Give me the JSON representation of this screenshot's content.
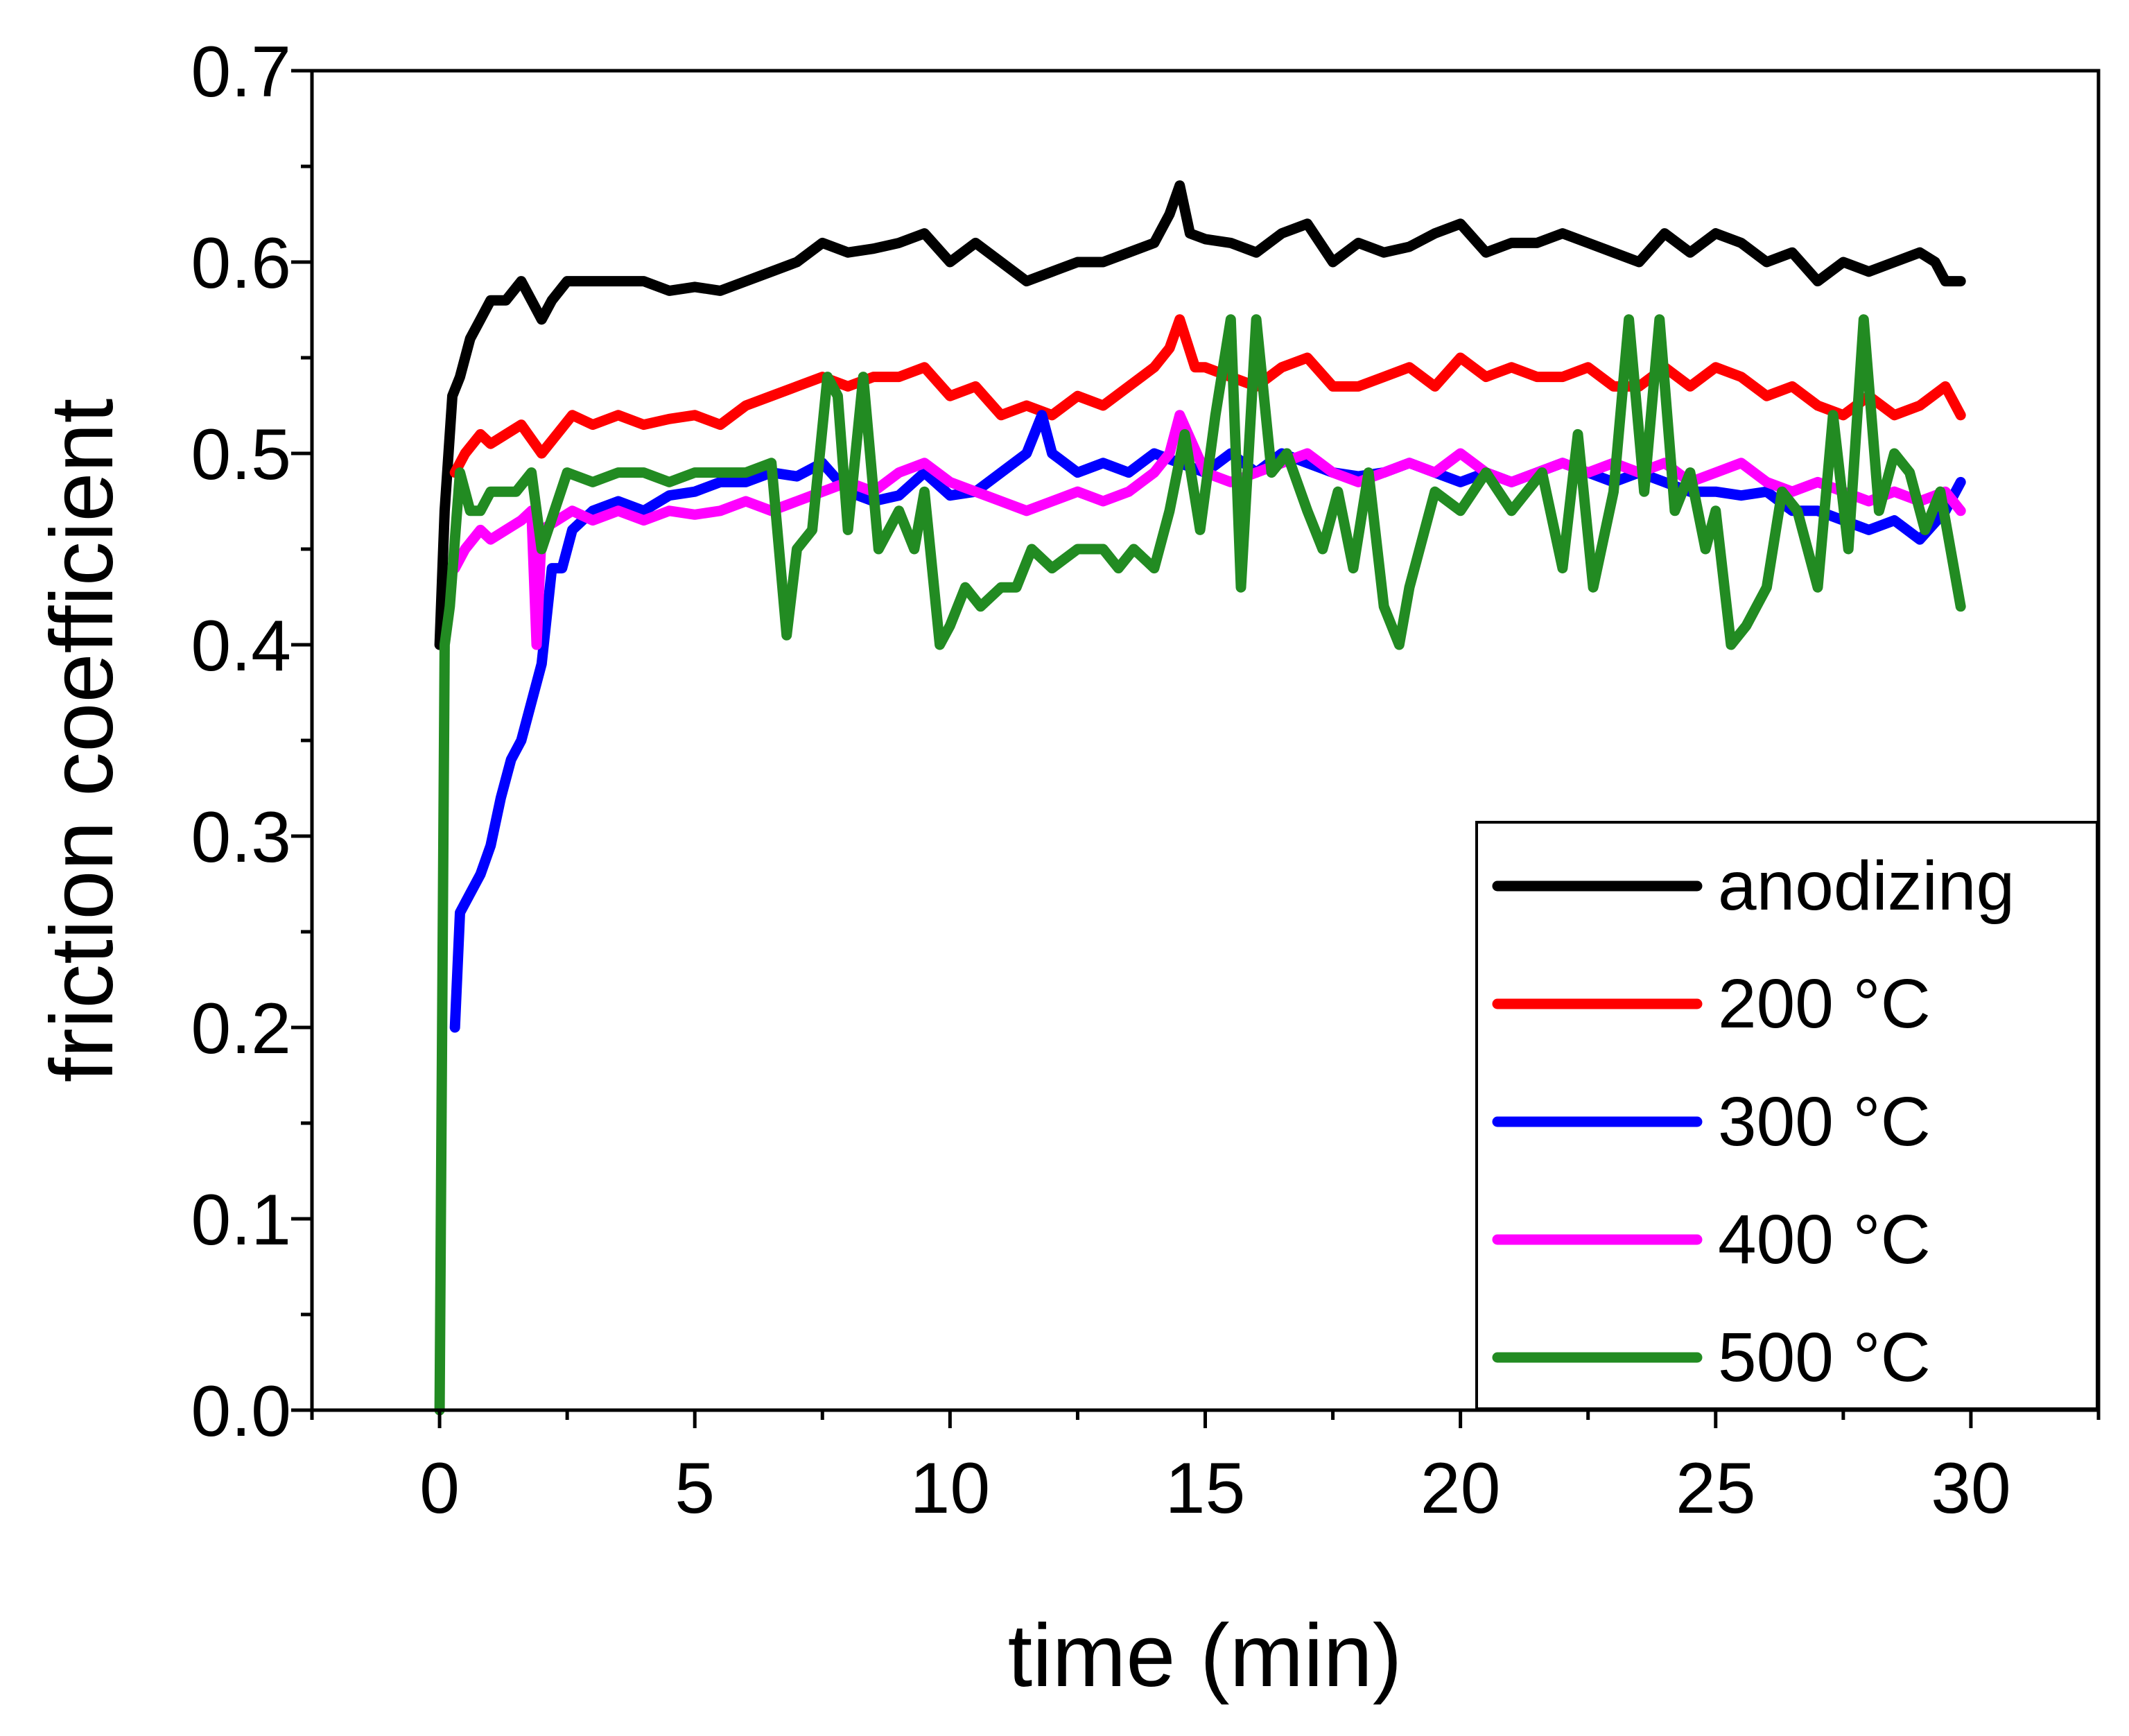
{
  "chart_data": {
    "type": "line",
    "title": "",
    "xlabel": "time (min)",
    "ylabel": "friction coefficient",
    "xlim": [
      -2.5,
      32.5
    ],
    "ylim": [
      0.0,
      0.7
    ],
    "xticks": [
      0,
      5,
      10,
      15,
      20,
      25,
      30
    ],
    "xtick_labels": [
      "0",
      "5",
      "10",
      "15",
      "20",
      "25",
      "30"
    ],
    "yticks": [
      0.0,
      0.1,
      0.2,
      0.3,
      0.4,
      0.5,
      0.6,
      0.7
    ],
    "ytick_labels": [
      "0.0",
      "0.1",
      "0.2",
      "0.3",
      "0.4",
      "0.5",
      "0.6",
      "0.7"
    ],
    "grid": false,
    "legend_position": "lower-right",
    "series": [
      {
        "name": "anodizing",
        "color": "#000000",
        "x": [
          0.0,
          0.1,
          0.25,
          0.4,
          0.6,
          0.8,
          1.0,
          1.3,
          1.6,
          1.8,
          2.0,
          2.2,
          2.5,
          3.0,
          3.5,
          4.0,
          4.5,
          5.0,
          5.5,
          6.0,
          6.5,
          7.0,
          7.5,
          8.0,
          8.5,
          9.0,
          9.5,
          10.0,
          10.5,
          11.0,
          11.5,
          12.0,
          12.5,
          13.0,
          13.5,
          14.0,
          14.3,
          14.5,
          14.7,
          15.0,
          15.5,
          16.0,
          16.5,
          17.0,
          17.5,
          18.0,
          18.5,
          19.0,
          19.5,
          20.0,
          20.5,
          21.0,
          21.5,
          22.0,
          22.5,
          23.0,
          23.5,
          24.0,
          24.5,
          25.0,
          25.5,
          26.0,
          26.5,
          27.0,
          27.5,
          28.0,
          28.5,
          29.0,
          29.3,
          29.5,
          29.8
        ],
        "y": [
          0.4,
          0.47,
          0.53,
          0.54,
          0.56,
          0.57,
          0.58,
          0.58,
          0.59,
          0.58,
          0.57,
          0.58,
          0.59,
          0.59,
          0.59,
          0.59,
          0.585,
          0.587,
          0.585,
          0.59,
          0.595,
          0.6,
          0.61,
          0.605,
          0.607,
          0.61,
          0.615,
          0.6,
          0.61,
          0.6,
          0.59,
          0.595,
          0.6,
          0.6,
          0.605,
          0.61,
          0.625,
          0.64,
          0.615,
          0.612,
          0.61,
          0.605,
          0.615,
          0.62,
          0.6,
          0.61,
          0.605,
          0.608,
          0.615,
          0.62,
          0.605,
          0.61,
          0.61,
          0.615,
          0.61,
          0.605,
          0.6,
          0.615,
          0.605,
          0.615,
          0.61,
          0.6,
          0.605,
          0.59,
          0.6,
          0.595,
          0.6,
          0.605,
          0.6,
          0.59,
          0.59
        ]
      },
      {
        "name": "200 °C",
        "color": "#ff0000",
        "x": [
          0.3,
          0.5,
          0.8,
          1.0,
          1.3,
          1.6,
          2.0,
          2.3,
          2.6,
          3.0,
          3.5,
          4.0,
          4.5,
          5.0,
          5.5,
          6.0,
          6.5,
          7.0,
          7.5,
          8.0,
          8.5,
          9.0,
          9.5,
          10.0,
          10.5,
          11.0,
          11.5,
          12.0,
          12.5,
          13.0,
          13.5,
          14.0,
          14.3,
          14.5,
          14.8,
          15.0,
          15.5,
          16.0,
          16.5,
          17.0,
          17.5,
          18.0,
          18.5,
          19.0,
          19.5,
          20.0,
          20.5,
          21.0,
          21.5,
          22.0,
          22.5,
          23.0,
          23.5,
          24.0,
          24.5,
          25.0,
          25.5,
          26.0,
          26.5,
          27.0,
          27.5,
          28.0,
          28.5,
          29.0,
          29.5,
          29.8
        ],
        "y": [
          0.49,
          0.5,
          0.51,
          0.505,
          0.51,
          0.515,
          0.5,
          0.51,
          0.52,
          0.515,
          0.52,
          0.515,
          0.518,
          0.52,
          0.515,
          0.525,
          0.53,
          0.535,
          0.54,
          0.535,
          0.54,
          0.54,
          0.545,
          0.53,
          0.535,
          0.52,
          0.525,
          0.52,
          0.53,
          0.525,
          0.535,
          0.545,
          0.555,
          0.57,
          0.545,
          0.545,
          0.54,
          0.535,
          0.545,
          0.55,
          0.535,
          0.535,
          0.54,
          0.545,
          0.535,
          0.55,
          0.54,
          0.545,
          0.54,
          0.54,
          0.545,
          0.535,
          0.535,
          0.545,
          0.535,
          0.545,
          0.54,
          0.53,
          0.535,
          0.525,
          0.52,
          0.53,
          0.52,
          0.525,
          0.535,
          0.52
        ]
      },
      {
        "name": "300 °C",
        "color": "#0000ff",
        "x": [
          0.3,
          0.4,
          0.6,
          0.8,
          1.0,
          1.2,
          1.4,
          1.6,
          1.8,
          2.0,
          2.2,
          2.4,
          2.6,
          3.0,
          3.5,
          4.0,
          4.5,
          5.0,
          5.5,
          6.0,
          6.5,
          7.0,
          7.5,
          8.0,
          8.5,
          9.0,
          9.5,
          10.0,
          10.5,
          11.0,
          11.5,
          11.8,
          12.0,
          12.5,
          13.0,
          13.5,
          14.0,
          14.5,
          15.0,
          15.5,
          16.0,
          16.5,
          17.0,
          17.5,
          18.0,
          18.5,
          19.0,
          19.5,
          20.0,
          20.5,
          21.0,
          21.5,
          22.0,
          22.5,
          23.0,
          23.5,
          24.0,
          24.5,
          25.0,
          25.5,
          26.0,
          26.5,
          27.0,
          27.5,
          28.0,
          28.5,
          29.0,
          29.5,
          29.8
        ],
        "y": [
          0.2,
          0.26,
          0.27,
          0.28,
          0.295,
          0.32,
          0.34,
          0.35,
          0.37,
          0.39,
          0.44,
          0.44,
          0.46,
          0.47,
          0.475,
          0.47,
          0.478,
          0.48,
          0.485,
          0.485,
          0.49,
          0.488,
          0.495,
          0.48,
          0.475,
          0.478,
          0.49,
          0.478,
          0.48,
          0.49,
          0.5,
          0.52,
          0.5,
          0.49,
          0.495,
          0.49,
          0.5,
          0.495,
          0.49,
          0.5,
          0.49,
          0.5,
          0.495,
          0.49,
          0.488,
          0.49,
          0.495,
          0.49,
          0.485,
          0.49,
          0.485,
          0.49,
          0.495,
          0.49,
          0.485,
          0.49,
          0.485,
          0.48,
          0.48,
          0.478,
          0.48,
          0.47,
          0.47,
          0.465,
          0.46,
          0.465,
          0.455,
          0.47,
          0.485
        ]
      },
      {
        "name": "400 °C",
        "color": "#ff00ff",
        "x": [
          0.3,
          0.5,
          0.8,
          1.0,
          1.3,
          1.6,
          1.8,
          1.9,
          2.0,
          2.3,
          2.6,
          3.0,
          3.5,
          4.0,
          4.5,
          5.0,
          5.5,
          6.0,
          6.5,
          7.0,
          7.5,
          8.0,
          8.5,
          9.0,
          9.5,
          10.0,
          10.5,
          11.0,
          11.5,
          12.0,
          12.5,
          13.0,
          13.5,
          14.0,
          14.3,
          14.5,
          15.0,
          15.5,
          16.0,
          16.5,
          17.0,
          17.5,
          18.0,
          18.5,
          19.0,
          19.5,
          20.0,
          20.5,
          21.0,
          21.5,
          22.0,
          22.5,
          23.0,
          23.5,
          24.0,
          24.5,
          25.0,
          25.5,
          26.0,
          26.5,
          27.0,
          27.5,
          28.0,
          28.5,
          29.0,
          29.5,
          29.8
        ],
        "y": [
          0.44,
          0.45,
          0.46,
          0.455,
          0.46,
          0.465,
          0.47,
          0.4,
          0.46,
          0.465,
          0.47,
          0.465,
          0.47,
          0.465,
          0.47,
          0.468,
          0.47,
          0.475,
          0.47,
          0.475,
          0.48,
          0.485,
          0.48,
          0.49,
          0.495,
          0.485,
          0.48,
          0.475,
          0.47,
          0.475,
          0.48,
          0.475,
          0.48,
          0.49,
          0.5,
          0.52,
          0.49,
          0.485,
          0.49,
          0.495,
          0.5,
          0.49,
          0.485,
          0.49,
          0.495,
          0.49,
          0.5,
          0.49,
          0.485,
          0.49,
          0.495,
          0.49,
          0.495,
          0.49,
          0.495,
          0.485,
          0.49,
          0.495,
          0.485,
          0.48,
          0.485,
          0.48,
          0.475,
          0.48,
          0.475,
          0.48,
          0.47
        ]
      },
      {
        "name": "500 °C",
        "color": "#228b22",
        "x": [
          0.0,
          0.1,
          0.2,
          0.4,
          0.6,
          0.8,
          1.0,
          1.5,
          1.8,
          2.0,
          2.5,
          3.0,
          3.5,
          4.0,
          4.5,
          5.0,
          5.5,
          6.0,
          6.5,
          6.8,
          7.0,
          7.3,
          7.6,
          7.8,
          8.0,
          8.3,
          8.6,
          9.0,
          9.3,
          9.5,
          9.8,
          10.0,
          10.3,
          10.6,
          11.0,
          11.3,
          11.6,
          12.0,
          12.5,
          13.0,
          13.3,
          13.6,
          14.0,
          14.3,
          14.6,
          14.9,
          15.2,
          15.5,
          15.7,
          16.0,
          16.3,
          16.6,
          17.0,
          17.3,
          17.6,
          17.9,
          18.2,
          18.5,
          18.8,
          19.0,
          19.5,
          20.0,
          20.5,
          21.0,
          21.3,
          21.6,
          22.0,
          22.3,
          22.6,
          23.0,
          23.3,
          23.6,
          23.9,
          24.2,
          24.5,
          24.8,
          25.0,
          25.3,
          25.6,
          26.0,
          26.3,
          26.6,
          27.0,
          27.3,
          27.6,
          27.9,
          28.2,
          28.5,
          28.8,
          29.1,
          29.4,
          29.6,
          29.8
        ],
        "y": [
          0.0,
          0.4,
          0.42,
          0.49,
          0.47,
          0.47,
          0.48,
          0.48,
          0.49,
          0.45,
          0.49,
          0.485,
          0.49,
          0.49,
          0.485,
          0.49,
          0.49,
          0.49,
          0.495,
          0.405,
          0.45,
          0.46,
          0.54,
          0.53,
          0.46,
          0.54,
          0.45,
          0.47,
          0.45,
          0.48,
          0.4,
          0.41,
          0.43,
          0.42,
          0.43,
          0.43,
          0.45,
          0.44,
          0.45,
          0.45,
          0.44,
          0.45,
          0.44,
          0.47,
          0.51,
          0.46,
          0.52,
          0.57,
          0.43,
          0.57,
          0.49,
          0.5,
          0.47,
          0.45,
          0.48,
          0.44,
          0.49,
          0.42,
          0.4,
          0.43,
          0.48,
          0.47,
          0.49,
          0.47,
          0.48,
          0.49,
          0.44,
          0.51,
          0.43,
          0.48,
          0.57,
          0.48,
          0.57,
          0.47,
          0.49,
          0.45,
          0.47,
          0.4,
          0.41,
          0.43,
          0.48,
          0.47,
          0.43,
          0.52,
          0.45,
          0.57,
          0.47,
          0.5,
          0.49,
          0.46,
          0.48,
          0.45,
          0.42
        ]
      }
    ]
  }
}
